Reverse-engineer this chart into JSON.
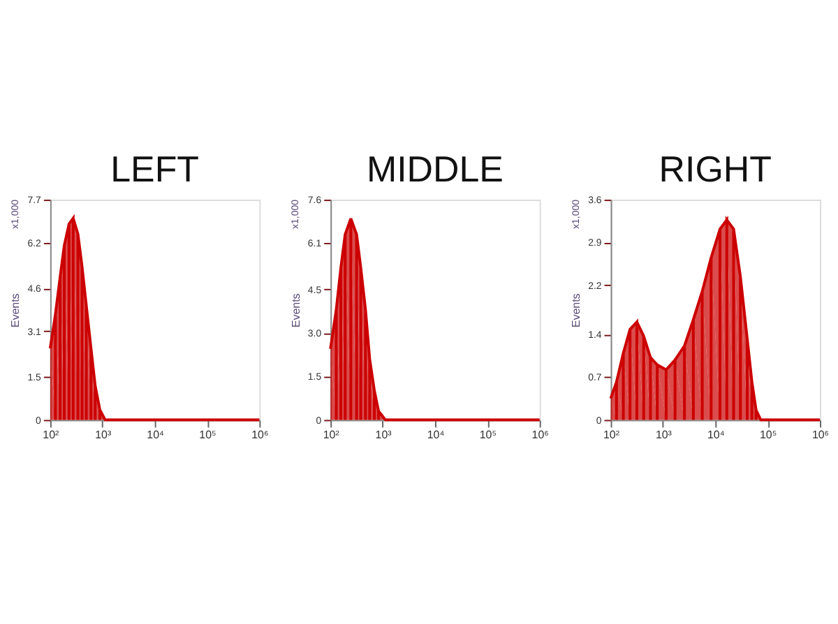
{
  "chart_data": [
    {
      "type": "area",
      "title": "LEFT",
      "ylabel": "Events",
      "annotations": [
        "x1,000"
      ],
      "color": "#cc0000",
      "log": "x",
      "grid": false,
      "x": [
        100,
        126,
        155,
        186,
        229,
        275,
        339,
        407,
        490,
        603,
        724,
        891,
        1122,
        1000000
      ],
      "values": [
        2.5,
        3.7,
        5.0,
        6.1,
        6.85,
        7.05,
        6.5,
        5.35,
        4.0,
        2.5,
        1.2,
        0.35,
        0,
        0
      ],
      "xlim": [
        100,
        1000000
      ],
      "xticks": [
        {
          "value": 100,
          "label": "10²"
        },
        {
          "value": 1000,
          "label": "10³"
        },
        {
          "value": 10000,
          "label": "10⁴"
        },
        {
          "value": 100000,
          "label": "10⁵"
        },
        {
          "value": 1000000,
          "label": "10⁶"
        }
      ],
      "ylim": [
        0,
        7.7
      ],
      "yticks": [
        0,
        1.5,
        3.1,
        4.6,
        6.2,
        7.7
      ]
    },
    {
      "type": "area",
      "title": "MIDDLE",
      "ylabel": "Events",
      "annotations": [
        "x1,000"
      ],
      "color": "#cc0000",
      "log": "x",
      "grid": false,
      "x": [
        100,
        129,
        158,
        191,
        245,
        316,
        380,
        468,
        562,
        692,
        832,
        1122,
        1000000
      ],
      "values": [
        2.45,
        3.8,
        5.25,
        6.4,
        6.95,
        6.4,
        5.25,
        3.8,
        2.1,
        1.0,
        0.3,
        0,
        0
      ],
      "xlim": [
        100,
        1000000
      ],
      "xticks": [
        {
          "value": 100,
          "label": "10²"
        },
        {
          "value": 1000,
          "label": "10³"
        },
        {
          "value": 10000,
          "label": "10⁴"
        },
        {
          "value": 100000,
          "label": "10⁵"
        },
        {
          "value": 1000000,
          "label": "10⁶"
        }
      ],
      "ylim": [
        0,
        7.6
      ],
      "yticks": [
        0,
        1.5,
        {
          "value": 3,
          "label": "3.0"
        },
        4.5,
        6.1,
        7.6
      ]
    },
    {
      "type": "area",
      "title": "RIGHT",
      "ylabel": "Events",
      "annotations": [
        "x1,000"
      ],
      "color": "#cc0000",
      "log": "x",
      "grid": false,
      "x": [
        100,
        129,
        174,
        234,
        316,
        427,
        575,
        776,
        1148,
        1698,
        2570,
        3802,
        5623,
        8318,
        12303,
        16596,
        22387,
        30200,
        40738,
        50119,
        60256,
        74131,
        1000000
      ],
      "values": [
        0.35,
        0.62,
        1.09,
        1.48,
        1.6,
        1.37,
        1.02,
        0.9,
        0.82,
        0.98,
        1.21,
        1.64,
        2.1,
        2.65,
        3.12,
        3.27,
        3.12,
        2.34,
        1.33,
        0.62,
        0.16,
        0,
        0
      ],
      "xlim": [
        100,
        1000000
      ],
      "xticks": [
        {
          "value": 100,
          "label": "10²"
        },
        {
          "value": 1000,
          "label": "10³"
        },
        {
          "value": 10000,
          "label": "10⁴"
        },
        {
          "value": 100000,
          "label": "10⁵"
        },
        {
          "value": 1000000,
          "label": "10⁶"
        }
      ],
      "ylim": [
        0,
        3.6
      ],
      "yticks": [
        0,
        0.7,
        1.4,
        2.2,
        2.9,
        {
          "value": 3.6,
          "label": "3.6"
        }
      ]
    }
  ]
}
